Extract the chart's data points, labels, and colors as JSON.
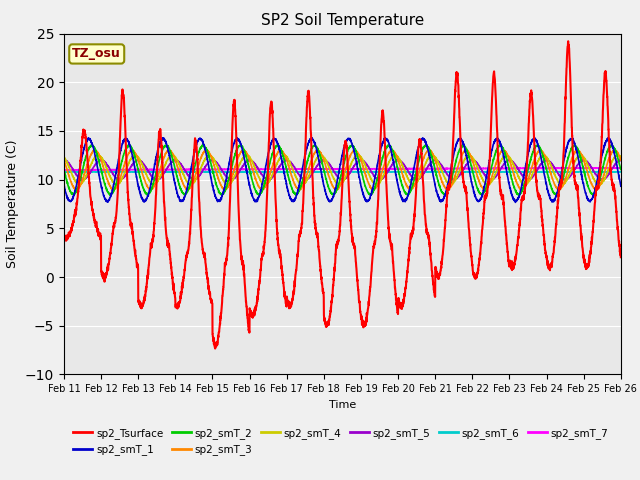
{
  "title": "SP2 Soil Temperature",
  "ylabel": "Soil Temperature (C)",
  "xlabel": "Time",
  "ylim": [
    -10,
    25
  ],
  "yticks": [
    -10,
    -5,
    0,
    5,
    10,
    15,
    20,
    25
  ],
  "xtick_labels": [
    "Feb 11",
    "Feb 12",
    "Feb 13",
    "Feb 14",
    "Feb 15",
    "Feb 16",
    "Feb 17",
    "Feb 18",
    "Feb 19",
    "Feb 20",
    "Feb 21",
    "Feb 22",
    "Feb 23",
    "Feb 24",
    "Feb 25",
    "Feb 26"
  ],
  "series_colors": {
    "sp2_Tsurface": "#FF0000",
    "sp2_smT_1": "#0000CC",
    "sp2_smT_2": "#00CC00",
    "sp2_smT_3": "#FF8800",
    "sp2_smT_4": "#CCCC00",
    "sp2_smT_5": "#9900CC",
    "sp2_smT_6": "#00CCCC",
    "sp2_smT_7": "#FF00FF"
  },
  "annotation_text": "TZ_osu",
  "background_color": "#E8E8E8",
  "grid_color": "#FFFFFF",
  "fig_bg": "#F0F0F0"
}
